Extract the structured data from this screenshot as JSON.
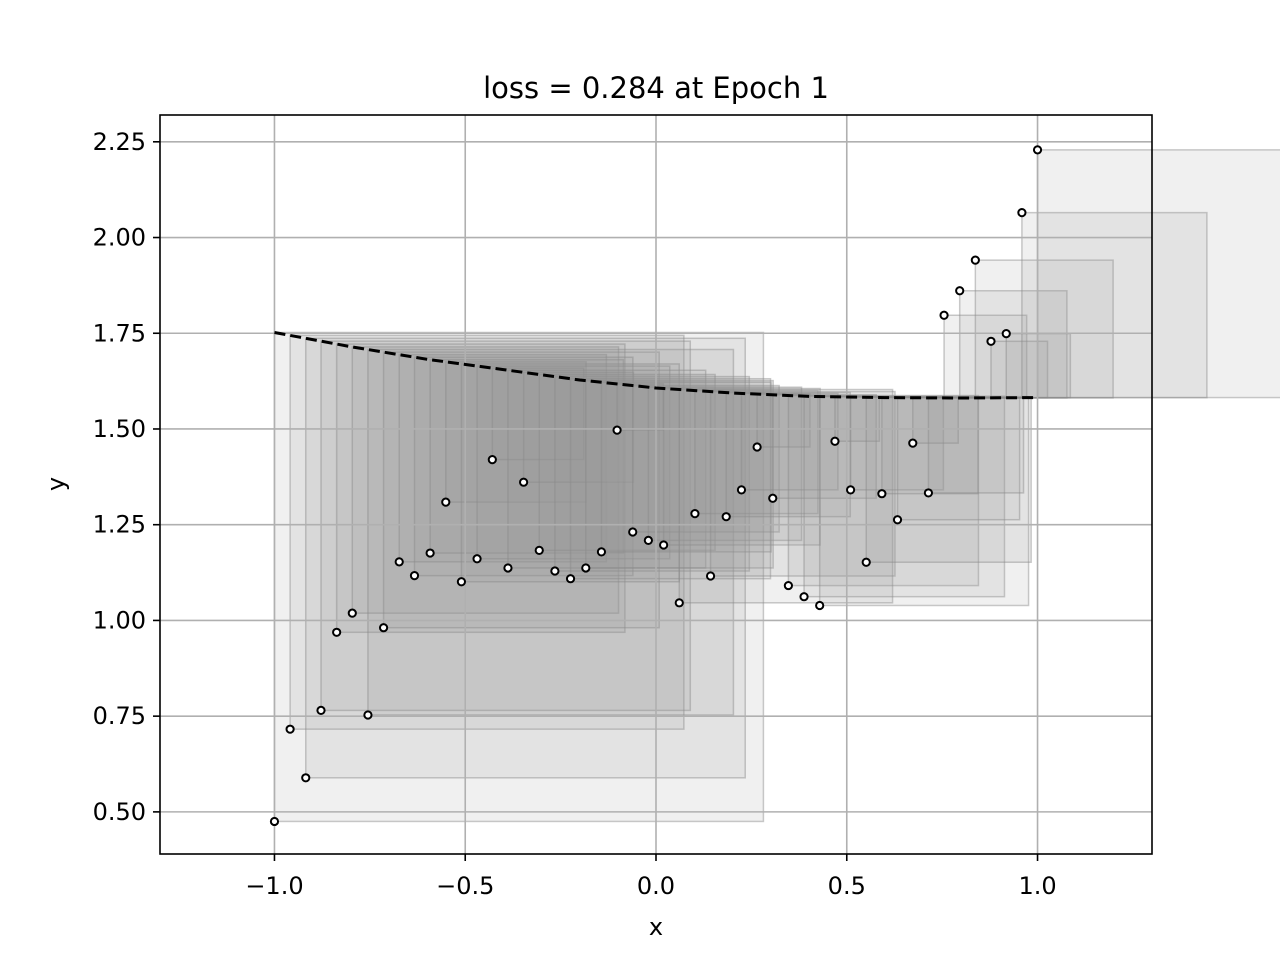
{
  "chart_data": {
    "type": "scatter",
    "title": "loss = 0.284 at Epoch 1",
    "xlabel": "x",
    "ylabel": "y",
    "xlim": [
      -1.3,
      1.3
    ],
    "ylim": [
      0.39,
      2.32
    ],
    "grid": true,
    "xticks": [
      -1.0,
      -0.5,
      0.0,
      0.5,
      1.0
    ],
    "xtick_labels": [
      "−1.0",
      "−0.5",
      "0.0",
      "0.5",
      "1.0"
    ],
    "yticks": [
      0.5,
      0.75,
      1.0,
      1.25,
      1.5,
      1.75,
      2.0,
      2.25
    ],
    "ytick_labels": [
      "0.50",
      "0.75",
      "1.00",
      "1.25",
      "1.50",
      "1.75",
      "2.00",
      "2.25"
    ],
    "series": [
      {
        "kind": "points",
        "x": [
          -1.0,
          -0.959,
          -0.918,
          -0.878,
          -0.837,
          -0.796,
          -0.755,
          -0.714,
          -0.673,
          -0.633,
          -0.592,
          -0.551,
          -0.51,
          -0.469,
          -0.429,
          -0.388,
          -0.347,
          -0.306,
          -0.265,
          -0.224,
          -0.184,
          -0.143,
          -0.102,
          -0.061,
          -0.02,
          0.02,
          0.061,
          0.102,
          0.143,
          0.184,
          0.224,
          0.265,
          0.306,
          0.347,
          0.388,
          0.429,
          0.469,
          0.51,
          0.551,
          0.592,
          0.633,
          0.673,
          0.714,
          0.755,
          0.796,
          0.837,
          0.878,
          0.918,
          0.959,
          1.0
        ],
        "y": [
          0.475,
          0.716,
          0.589,
          0.765,
          0.969,
          1.019,
          0.753,
          0.981,
          1.153,
          1.117,
          1.176,
          1.309,
          1.101,
          1.161,
          1.42,
          1.137,
          1.361,
          1.183,
          1.129,
          1.109,
          1.137,
          1.179,
          1.497,
          1.231,
          1.209,
          1.197,
          1.046,
          1.279,
          1.116,
          1.271,
          1.341,
          1.453,
          1.319,
          1.091,
          1.062,
          1.039,
          1.468,
          1.341,
          1.152,
          1.331,
          1.263,
          1.463,
          1.333,
          1.797,
          1.861,
          1.941,
          1.729,
          1.749,
          2.065,
          2.229
        ]
      },
      {
        "kind": "dashed-line",
        "x": [
          -1.0,
          -0.8,
          -0.6,
          -0.4,
          -0.2,
          0.0,
          0.2,
          0.4,
          0.6,
          0.8,
          1.0
        ],
        "y": [
          1.752,
          1.715,
          1.682,
          1.655,
          1.628,
          1.607,
          1.594,
          1.585,
          1.582,
          1.581,
          1.582
        ]
      }
    ]
  }
}
